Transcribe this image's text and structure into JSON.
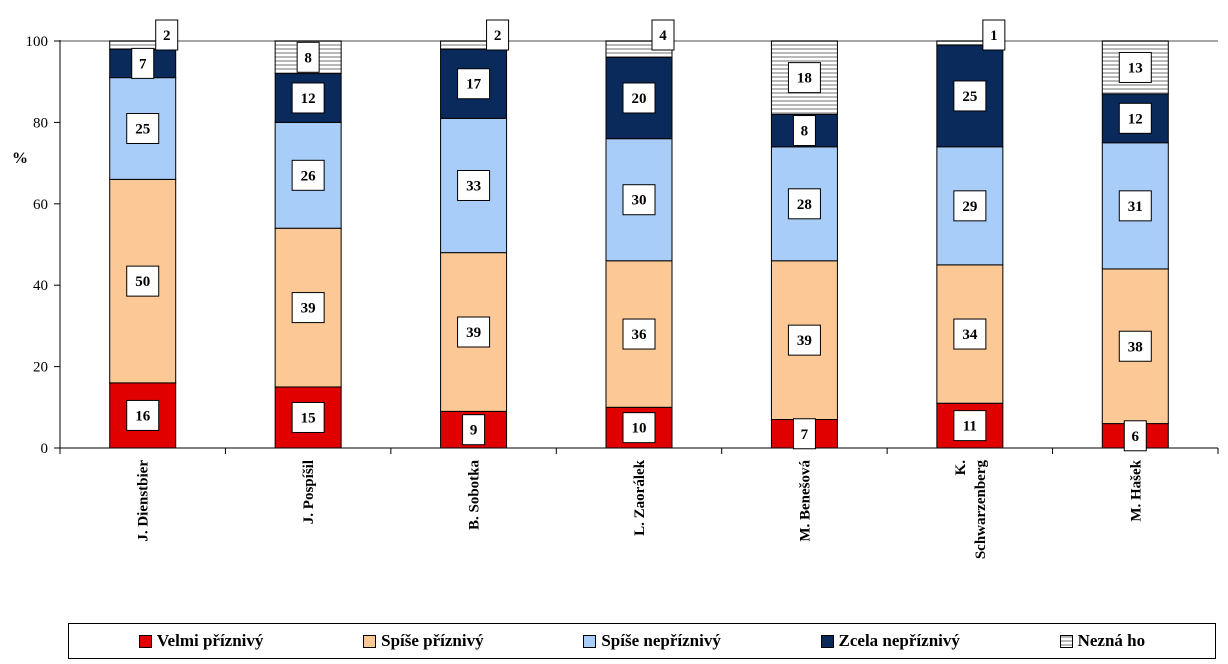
{
  "chart_data": {
    "type": "bar",
    "stacked": true,
    "ylabel": "%",
    "ylim": [
      0,
      100
    ],
    "yticks": [
      0,
      20,
      40,
      60,
      80,
      100
    ],
    "grid": false,
    "legend_position": "bottom",
    "categories": [
      "J. Dienstbier",
      "J. Pospíšil",
      "B. Sobotka",
      "L. Zaorálek",
      "M. Benešová",
      "K. Schwarzenberg",
      "M. Hašek"
    ],
    "series": [
      {
        "name": "Velmi příznivý",
        "color": "#e00000",
        "values": [
          16,
          15,
          9,
          10,
          7,
          11,
          6
        ]
      },
      {
        "name": "Spíše příznivý",
        "color": "#fcc896",
        "values": [
          50,
          39,
          39,
          36,
          39,
          34,
          38
        ]
      },
      {
        "name": "Spíše nepříznivý",
        "color": "#a8cdf8",
        "values": [
          25,
          26,
          33,
          30,
          28,
          29,
          31
        ]
      },
      {
        "name": "Zcela nepříznivý",
        "color": "#0a2a5c",
        "values": [
          7,
          12,
          17,
          20,
          8,
          25,
          12
        ]
      },
      {
        "name": "Nezná ho",
        "color": "#ffffff",
        "pattern": "horizontal-stripes",
        "values": [
          2,
          8,
          2,
          4,
          18,
          1,
          13
        ]
      }
    ]
  }
}
